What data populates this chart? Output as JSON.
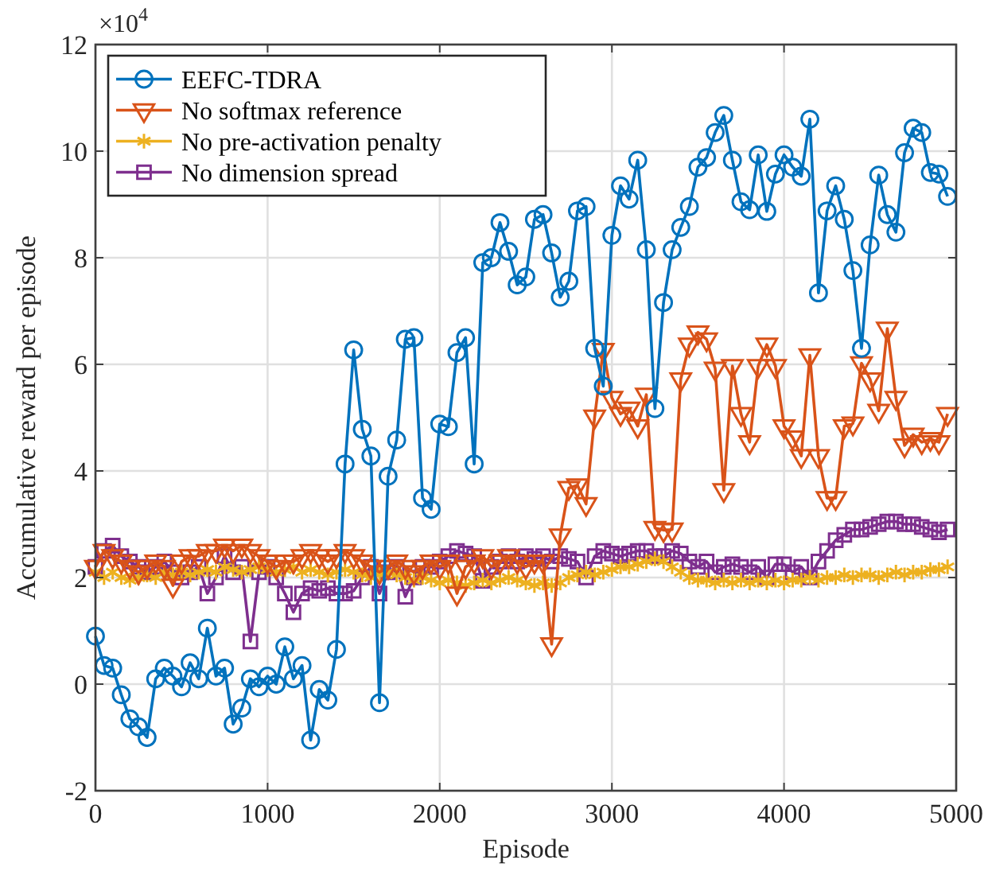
{
  "chart_data": {
    "type": "line",
    "xlabel": "Episode",
    "ylabel": "Accumulative reward per episode",
    "annotations": [
      "×10$^{4}$"
    ],
    "x": [
      0,
      50,
      100,
      150,
      200,
      250,
      300,
      350,
      400,
      450,
      500,
      550,
      600,
      650,
      700,
      750,
      800,
      850,
      900,
      950,
      1000,
      1050,
      1100,
      1150,
      1200,
      1250,
      1300,
      1350,
      1400,
      1450,
      1500,
      1550,
      1600,
      1650,
      1700,
      1750,
      1800,
      1850,
      1900,
      1950,
      2000,
      2050,
      2100,
      2150,
      2200,
      2250,
      2300,
      2350,
      2400,
      2450,
      2500,
      2550,
      2600,
      2650,
      2700,
      2750,
      2800,
      2850,
      2900,
      2950,
      3000,
      3050,
      3100,
      3150,
      3200,
      3250,
      3300,
      3350,
      3400,
      3450,
      3500,
      3550,
      3600,
      3650,
      3700,
      3750,
      3800,
      3850,
      3900,
      3950,
      4000,
      4050,
      4100,
      4150,
      4200,
      4250,
      4300,
      4350,
      4400,
      4450,
      4500,
      4550,
      4600,
      4650,
      4700,
      4750,
      4800,
      4850,
      4900,
      4950
    ],
    "series": [
      {
        "name": "EEFC-TDRA",
        "color": "#0072bd",
        "marker": "circle",
        "values": [
          0.9,
          0.35,
          0.3,
          -0.2,
          -0.65,
          -0.8,
          -1.0,
          0.1,
          0.3,
          0.15,
          -0.05,
          0.4,
          0.1,
          1.05,
          0.15,
          0.3,
          -0.75,
          -0.45,
          0.1,
          -0.05,
          0.15,
          0.0,
          0.7,
          0.1,
          0.35,
          -1.05,
          -0.1,
          -0.3,
          0.65,
          4.13,
          6.27,
          4.78,
          4.28,
          -0.35,
          3.9,
          4.58,
          6.47,
          6.5,
          3.49,
          3.28,
          4.88,
          4.83,
          6.22,
          6.5,
          4.13,
          7.91,
          8.0,
          8.66,
          8.12,
          7.49,
          7.64,
          8.72,
          8.81,
          8.09,
          7.26,
          7.56,
          8.88,
          8.96,
          6.3,
          5.59,
          8.42,
          9.35,
          9.1,
          9.83,
          8.15,
          5.17,
          7.16,
          8.15,
          8.57,
          8.96,
          9.7,
          9.88,
          10.35,
          10.67,
          9.83,
          9.05,
          8.9,
          9.93,
          8.87,
          9.57,
          9.93,
          9.7,
          9.53,
          10.6,
          7.34,
          8.88,
          9.35,
          8.72,
          7.76,
          6.3,
          8.24,
          9.55,
          8.81,
          8.48,
          9.97,
          10.43,
          10.35,
          9.6,
          9.57,
          9.15
        ]
      },
      {
        "name": "No softmax reference",
        "color": "#d95319",
        "marker": "triangle",
        "values": [
          2.2,
          2.5,
          2.4,
          2.3,
          2.2,
          2.1,
          2.2,
          2.3,
          2.2,
          1.85,
          2.3,
          2.4,
          2.4,
          2.5,
          2.5,
          2.6,
          2.5,
          2.6,
          2.5,
          2.4,
          2.3,
          2.2,
          2.3,
          2.3,
          2.4,
          2.5,
          2.4,
          2.3,
          2.4,
          2.5,
          2.4,
          2.3,
          2.2,
          2.1,
          2.2,
          2.3,
          2.2,
          2.1,
          2.2,
          2.3,
          2.2,
          2.3,
          1.7,
          2.2,
          2.3,
          2.4,
          2.2,
          2.3,
          2.4,
          2.3,
          2.2,
          2.3,
          2.3,
          0.75,
          2.79,
          3.68,
          3.73,
          3.38,
          5.02,
          6.27,
          5.37,
          5.07,
          5.17,
          4.84,
          5.43,
          2.93,
          2.89,
          2.9,
          5.72,
          6.37,
          6.6,
          6.47,
          5.92,
          3.64,
          5.97,
          5.07,
          4.54,
          5.97,
          6.37,
          5.97,
          4.84,
          4.63,
          4.28,
          6.17,
          4.28,
          3.49,
          3.49,
          4.84,
          4.89,
          6.02,
          5.72,
          5.13,
          6.67,
          5.37,
          4.48,
          4.68,
          4.54,
          4.6,
          4.54,
          5.07
        ]
      },
      {
        "name": "No pre-activation penalty",
        "color": "#edb120",
        "marker": "cross",
        "values": [
          2.1,
          2.0,
          2.1,
          2.0,
          1.95,
          2.0,
          2.05,
          2.0,
          2.1,
          2.05,
          2.1,
          2.05,
          2.1,
          2.15,
          2.1,
          2.2,
          2.15,
          2.1,
          2.15,
          2.2,
          2.15,
          2.1,
          2.15,
          2.2,
          2.1,
          2.15,
          2.1,
          2.05,
          2.1,
          2.15,
          2.1,
          2.05,
          2.0,
          2.05,
          2.1,
          2.05,
          2.0,
          1.95,
          2.0,
          1.95,
          1.9,
          1.95,
          1.9,
          1.85,
          1.9,
          1.95,
          1.9,
          1.95,
          2.0,
          1.95,
          1.9,
          1.85,
          1.9,
          1.85,
          1.9,
          2.0,
          2.05,
          2.1,
          2.05,
          2.1,
          2.15,
          2.2,
          2.2,
          2.25,
          2.3,
          2.35,
          2.3,
          2.2,
          2.1,
          2.0,
          1.95,
          1.95,
          1.9,
          1.95,
          1.9,
          1.95,
          1.9,
          1.95,
          1.9,
          1.95,
          1.9,
          1.95,
          1.95,
          2.0,
          1.95,
          2.0,
          2.0,
          2.05,
          2.0,
          2.05,
          2.05,
          2.0,
          2.05,
          2.1,
          2.05,
          2.1,
          2.1,
          2.15,
          2.15,
          2.2
        ]
      },
      {
        "name": "No dimension spread",
        "color": "#7e2f8e",
        "marker": "square",
        "values": [
          2.2,
          2.5,
          2.6,
          2.4,
          2.3,
          2.2,
          2.1,
          2.2,
          2.3,
          2.1,
          2.0,
          2.1,
          2.2,
          1.7,
          2.0,
          2.4,
          2.1,
          2.2,
          0.8,
          2.1,
          2.2,
          2.0,
          1.7,
          1.35,
          1.7,
          1.8,
          1.75,
          1.8,
          1.7,
          1.7,
          1.75,
          2.0,
          2.2,
          1.7,
          2.1,
          2.2,
          1.64,
          2.0,
          2.2,
          2.2,
          2.3,
          2.4,
          2.5,
          2.45,
          2.4,
          1.94,
          2.2,
          2.3,
          2.4,
          2.3,
          2.4,
          2.35,
          2.4,
          2.3,
          2.4,
          2.35,
          2.3,
          2.0,
          2.4,
          2.5,
          2.45,
          2.4,
          2.45,
          2.5,
          2.5,
          2.4,
          2.4,
          2.5,
          2.45,
          2.3,
          2.2,
          2.3,
          2.1,
          2.2,
          2.25,
          2.2,
          2.1,
          2.2,
          2.0,
          2.25,
          2.25,
          2.1,
          2.2,
          2.0,
          2.3,
          2.5,
          2.7,
          2.8,
          2.9,
          2.9,
          2.95,
          3.0,
          3.05,
          3.05,
          3.0,
          3.0,
          2.95,
          2.9,
          2.85,
          2.9
        ]
      }
    ],
    "xlim": [
      0,
      5000
    ],
    "xticks": [
      0,
      1000,
      2000,
      3000,
      4000,
      5000
    ],
    "ylim": [
      -2,
      12
    ],
    "yticks": [
      -2,
      0,
      2,
      4,
      6,
      8,
      10,
      12
    ],
    "grid": true,
    "legend": "top left",
    "line_style": "solid"
  }
}
